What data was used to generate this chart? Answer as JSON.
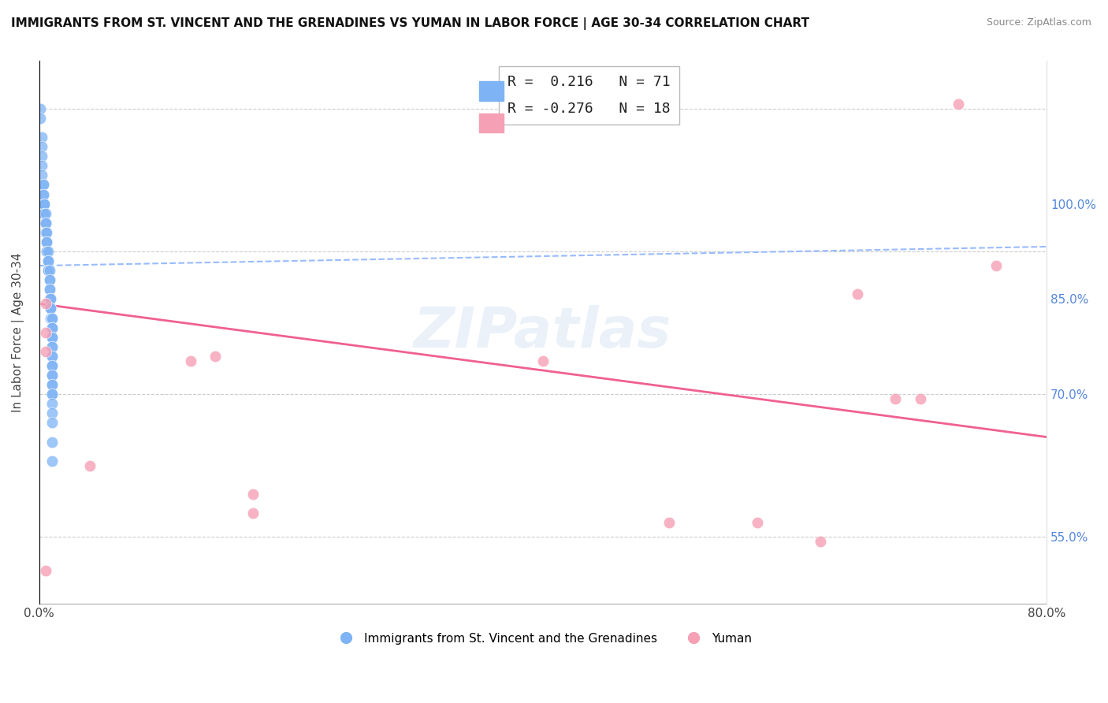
{
  "title": "IMMIGRANTS FROM ST. VINCENT AND THE GRENADINES VS YUMAN IN LABOR FORCE | AGE 30-34 CORRELATION CHART",
  "source": "Source: ZipAtlas.com",
  "ylabel": "In Labor Force | Age 30-34",
  "xlim": [
    0.0,
    0.8
  ],
  "ylim": [
    0.48,
    1.05
  ],
  "legend_blue_r": "0.216",
  "legend_blue_n": "71",
  "legend_pink_r": "-0.276",
  "legend_pink_n": "18",
  "blue_color": "#7EB3F5",
  "pink_color": "#F5A0B5",
  "blue_line_color": "#4472C4",
  "pink_line_color": "#F06090",
  "blue_dashed_color": "#99BBFF",
  "watermark": "ZIPatlas",
  "blue_scatter_x": [
    0.001,
    0.001,
    0.002,
    0.002,
    0.002,
    0.002,
    0.002,
    0.003,
    0.003,
    0.003,
    0.003,
    0.004,
    0.004,
    0.004,
    0.004,
    0.004,
    0.005,
    0.005,
    0.005,
    0.005,
    0.005,
    0.005,
    0.006,
    0.006,
    0.006,
    0.006,
    0.006,
    0.006,
    0.007,
    0.007,
    0.007,
    0.007,
    0.007,
    0.007,
    0.008,
    0.008,
    0.008,
    0.008,
    0.008,
    0.008,
    0.009,
    0.009,
    0.009,
    0.009,
    0.009,
    0.009,
    0.01,
    0.01,
    0.01,
    0.01,
    0.01,
    0.01,
    0.01,
    0.01,
    0.01,
    0.01,
    0.01,
    0.01,
    0.01,
    0.01,
    0.01,
    0.01,
    0.01,
    0.01,
    0.01,
    0.01,
    0.01,
    0.01,
    0.01,
    0.01,
    0.01
  ],
  "blue_scatter_y": [
    1.0,
    0.99,
    0.97,
    0.96,
    0.95,
    0.94,
    0.93,
    0.92,
    0.92,
    0.91,
    0.91,
    0.9,
    0.9,
    0.9,
    0.89,
    0.89,
    0.89,
    0.88,
    0.88,
    0.88,
    0.87,
    0.87,
    0.87,
    0.86,
    0.86,
    0.86,
    0.85,
    0.85,
    0.85,
    0.84,
    0.84,
    0.84,
    0.83,
    0.83,
    0.83,
    0.82,
    0.82,
    0.81,
    0.81,
    0.8,
    0.8,
    0.8,
    0.79,
    0.79,
    0.79,
    0.78,
    0.78,
    0.78,
    0.77,
    0.77,
    0.77,
    0.76,
    0.76,
    0.76,
    0.75,
    0.75,
    0.74,
    0.74,
    0.73,
    0.73,
    0.72,
    0.72,
    0.71,
    0.71,
    0.7,
    0.7,
    0.69,
    0.68,
    0.67,
    0.65,
    0.63
  ],
  "pink_scatter_x": [
    0.005,
    0.005,
    0.005,
    0.005,
    0.04,
    0.12,
    0.14,
    0.17,
    0.17,
    0.4,
    0.5,
    0.57,
    0.62,
    0.65,
    0.68,
    0.7,
    0.73,
    0.76
  ],
  "pink_scatter_y": [
    0.795,
    0.765,
    0.745,
    0.515,
    0.625,
    0.735,
    0.74,
    0.595,
    0.575,
    0.735,
    0.565,
    0.565,
    0.545,
    0.805,
    0.695,
    0.695,
    1.005,
    0.835
  ],
  "blue_trend_x": [
    0.0,
    0.8
  ],
  "blue_trend_y": [
    0.835,
    0.855
  ],
  "pink_trend_x": [
    0.0,
    0.8
  ],
  "pink_trend_y": [
    0.795,
    0.655
  ]
}
